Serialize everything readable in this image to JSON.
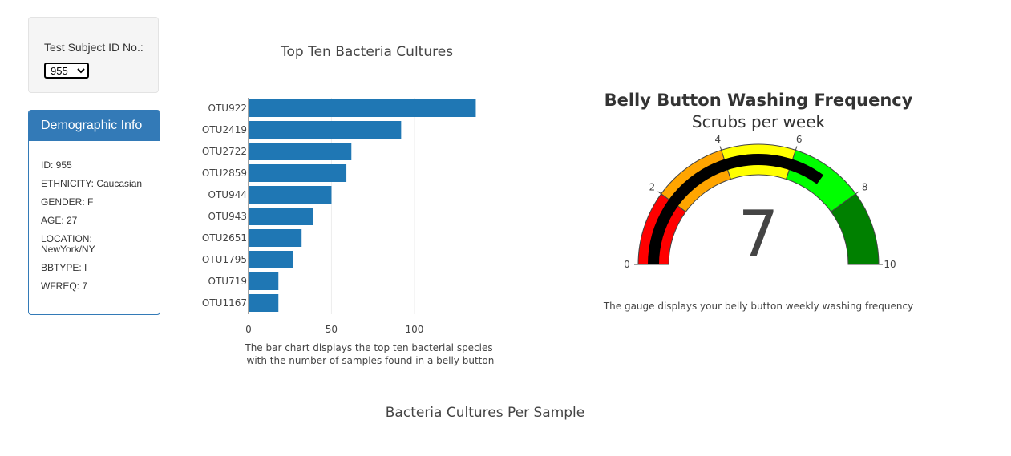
{
  "selector": {
    "label": "Test Subject ID No.:",
    "selected": "955"
  },
  "demographics": {
    "title": "Demographic Info",
    "rows": [
      "ID: 955",
      "ETHNICITY: Caucasian",
      "GENDER: F",
      "AGE: 27",
      "LOCATION: NewYork/NY",
      "BBTYPE: I",
      "WFREQ: 7"
    ]
  },
  "bar_caption": "The bar chart displays the top ten bacterial species\n with the number of samples found in a belly button",
  "gauge_caption": "The gauge displays your belly button weekly washing frequency",
  "bubble_title": "Bacteria Cultures Per Sample",
  "colors": {
    "bar": "#1f77b4",
    "panel": "#337ab7",
    "gauge_bands": [
      "#ff0000",
      "#ffa500",
      "#ffff00",
      "#00ff00",
      "#008000"
    ],
    "gauge_bar": "#000000"
  },
  "chart_data": [
    {
      "type": "bar",
      "orientation": "horizontal",
      "title": "Top Ten Bacteria Cultures",
      "categories": [
        "OTU922",
        "OTU2419",
        "OTU2722",
        "OTU2859",
        "OTU944",
        "OTU943",
        "OTU2651",
        "OTU1795",
        "OTU719",
        "OTU1167"
      ],
      "values": [
        137,
        92,
        62,
        59,
        50,
        39,
        32,
        27,
        18,
        18
      ],
      "xticks": [
        0,
        50,
        100
      ],
      "xlim": [
        0,
        145
      ],
      "grid": true
    },
    {
      "type": "gauge",
      "title": "Belly Button Washing Frequency",
      "subtitle": "Scrubs per week",
      "value": 7,
      "range": [
        0,
        10
      ],
      "ticks": [
        0,
        2,
        4,
        6,
        8,
        10
      ],
      "steps": [
        [
          0,
          2
        ],
        [
          2,
          4
        ],
        [
          4,
          6
        ],
        [
          6,
          8
        ],
        [
          8,
          10
        ]
      ]
    }
  ]
}
